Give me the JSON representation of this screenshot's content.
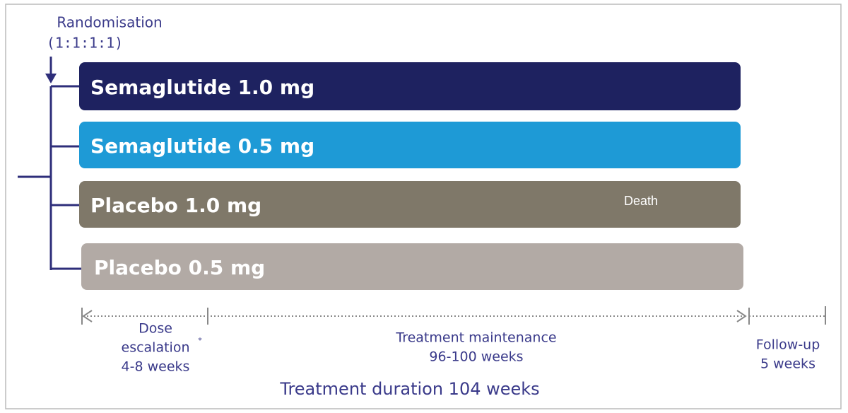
{
  "randomisation": {
    "label": "Randomisation",
    "ratio": "(1:1:1:1)"
  },
  "arms": [
    {
      "label": "Semaglutide 1.0 mg"
    },
    {
      "label": "Semaglutide 0.5 mg"
    },
    {
      "label": "Placebo 1.0 mg",
      "note": "Death"
    },
    {
      "label": "Placebo 0.5 mg"
    }
  ],
  "timeline": {
    "dose_escalation": {
      "line1": "Dose",
      "line2": "escalation",
      "footnote_mark": "*",
      "duration": "4-8 weeks"
    },
    "maintenance": {
      "label": "Treatment maintenance",
      "duration": "96-100 weeks"
    },
    "follow_up": {
      "label": "Follow-up",
      "duration": "5 weeks"
    },
    "total": "Treatment duration 104 weeks"
  }
}
